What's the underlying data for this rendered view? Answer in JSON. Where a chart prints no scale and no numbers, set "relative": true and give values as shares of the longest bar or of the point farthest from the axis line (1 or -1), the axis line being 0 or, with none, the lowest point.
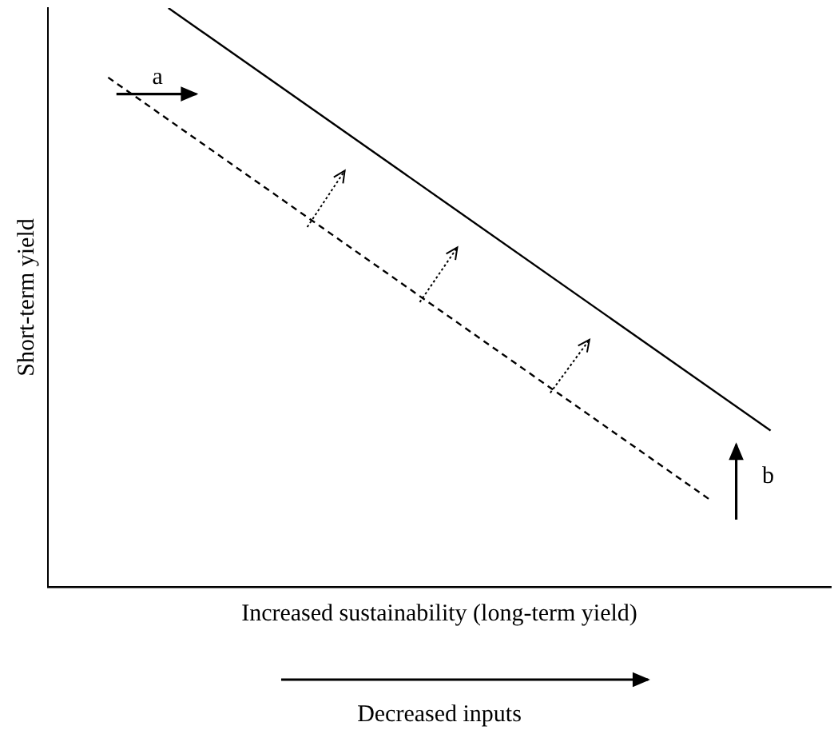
{
  "chart_data": {
    "type": "line",
    "relative": true,
    "xlabel": "Increased sustainability (long-term yield)",
    "ylabel": "Short-term yield",
    "categories": [
      null,
      null,
      null,
      null,
      null,
      null,
      null,
      null,
      null,
      null,
      null,
      null,
      null,
      null
    ],
    "series": [
      {
        "color": "#000000",
        "line_style": "solid",
        "values": [
          null,
          null,
          1.0,
          null,
          null,
          null,
          null,
          null,
          null,
          null,
          null,
          null,
          0.27,
          null
        ]
      },
      {
        "color": "#000000",
        "line_style": "dashed",
        "values": [
          null,
          0.88,
          null,
          null,
          null,
          null,
          null,
          null,
          null,
          null,
          null,
          0.15,
          null,
          null
        ]
      }
    ],
    "marker": "none",
    "grid": false,
    "legend": false,
    "annotations": [
      "a",
      "b",
      "Decreased inputs"
    ]
  }
}
